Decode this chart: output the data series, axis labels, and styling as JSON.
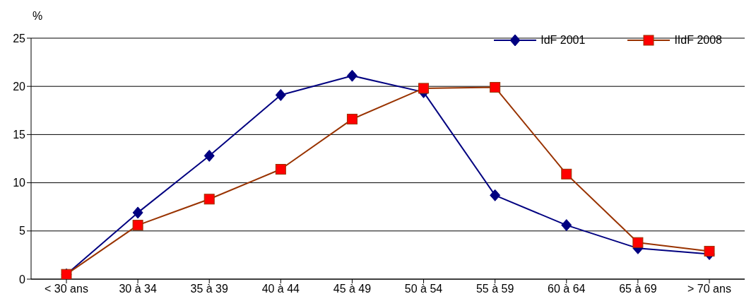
{
  "chart_data": {
    "type": "line",
    "ylabel": "%",
    "categories": [
      "< 30 ans",
      "30 à 34",
      "35 à 39",
      "40 à 44",
      "45 à 49",
      "50 à 54",
      "55 à 59",
      "60 à 64",
      "65 à 69",
      "> 70 ans"
    ],
    "series": [
      {
        "name": "IdF 2001",
        "color": "#000080",
        "marker": "diamond",
        "values": [
          0.5,
          6.9,
          12.8,
          19.1,
          21.1,
          19.4,
          8.7,
          5.6,
          3.2,
          2.6
        ]
      },
      {
        "name": "IIdF 2008",
        "color": "#ff0000",
        "marker": "square",
        "values": [
          0.5,
          5.6,
          8.3,
          11.4,
          16.6,
          19.8,
          19.9,
          10.9,
          3.8,
          2.9
        ]
      }
    ],
    "ylim": [
      0,
      25
    ],
    "yticks": [
      0,
      5,
      10,
      15,
      20,
      25
    ],
    "grid": "y",
    "legend": "top right",
    "line_style": "solid"
  }
}
